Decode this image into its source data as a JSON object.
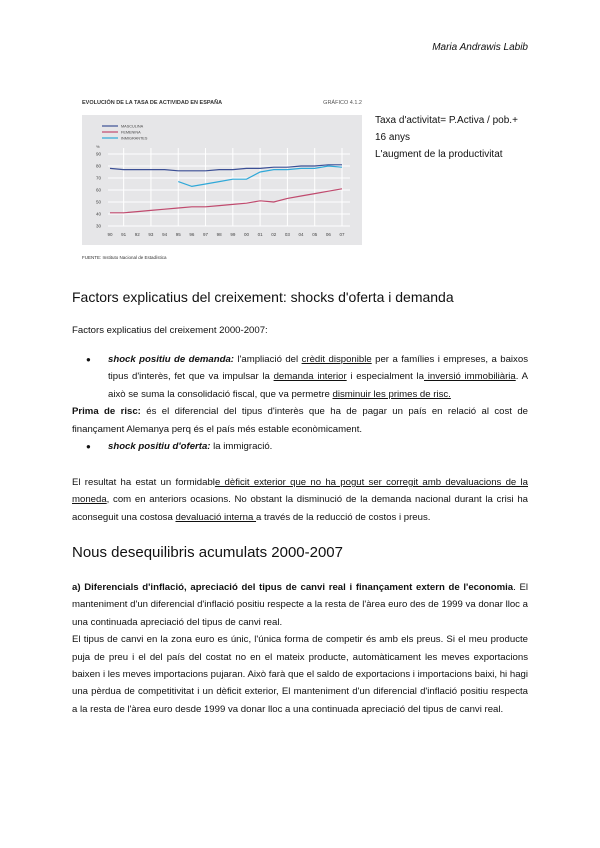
{
  "header": {
    "author": "Maria Andrawis Labib"
  },
  "figure": {
    "title": "EVOLUCIÓN DE LA TASA DE ACTIVIDAD EN ESPAÑA",
    "label": "GRÁFICO 4.1.2",
    "source": "FUENTE: Instituto Nacional de Estadística"
  },
  "chart_data": {
    "type": "line",
    "title": "EVOLUCIÓN DE LA TASA DE ACTIVIDAD EN ESPAÑA",
    "ylabel": "%",
    "ylim": [
      30,
      90
    ],
    "yticks": [
      "90",
      "80",
      "70",
      "60",
      "50",
      "40",
      "30"
    ],
    "categories": [
      "90",
      "91",
      "92",
      "93",
      "94",
      "95",
      "96",
      "97",
      "98",
      "99",
      "00",
      "01",
      "02",
      "03",
      "04",
      "05",
      "06",
      "07"
    ],
    "legend": "top-left",
    "grid": true,
    "series": [
      {
        "name": "MASCULINA",
        "color": "#3b4f95",
        "values": [
          78,
          77,
          77,
          77,
          77,
          76,
          76,
          76,
          77,
          77,
          78,
          78,
          79,
          79,
          80,
          80,
          81,
          81
        ]
      },
      {
        "name": "FEMENINA",
        "color": "#c04a6e",
        "values": [
          41,
          41,
          42,
          43,
          44,
          45,
          46,
          46,
          47,
          48,
          49,
          51,
          50,
          53,
          55,
          57,
          59,
          61
        ]
      },
      {
        "name": "INMIGRANTES",
        "color": "#2fa8d8",
        "values": [
          null,
          null,
          null,
          null,
          null,
          67,
          63,
          65,
          67,
          69,
          69,
          75,
          77,
          77,
          78,
          78,
          80,
          79
        ]
      }
    ]
  },
  "notes": {
    "line1": "Taxa d'activitat= P.Activa / pob.+",
    "line2": "16 anys",
    "line3": "L'augment de la productivitat"
  },
  "section1": {
    "heading": "Factors explicatius del creixement: shocks d'oferta i demanda",
    "subheading": "Factors explicatius del creixement 2000-2007:",
    "b1_term": "shock positiu de demanda:",
    "b1_a": " l'ampliació del ",
    "b1_u1": "crèdit disponible",
    "b1_b": " per a famílies i empreses, a baixos tipus d'interès, fet que va impulsar la ",
    "b1_u2": "demanda interior",
    "b1_c": " i especialment la",
    "b1_u3": " inversió immobiliària",
    "b1_d": ". A això se suma la consolidació fiscal, que va permetre ",
    "b1_u4": "disminuir les primes de risc.",
    "prima_term": "Prima de risc:",
    "prima_text": " és el diferencial del tipus d'interès que ha de pagar un país en relació al cost de finançament Alemanya perq és el país més estable econòmicament.",
    "b2_term": "shock positiu d'oferta:",
    "b2_text": " la immigració.",
    "p_a": "El resultat ha estat un formidabl",
    "p_u1": "e dèficit exterior que no ha pogut ser corregit amb devaluacions de la moneda",
    "p_b": ", com en anteriors ocasions. No obstant la disminució de la demanda nacional durant la crisi ha aconseguit una costosa ",
    "p_u2": "devaluació interna ",
    "p_c": "a través de la reducció de costos i preus."
  },
  "section2": {
    "heading": "Nous desequilibris acumulats 2000-2007",
    "a_bold": "a) Diferencials d'inflació, apreciació del tipus de canvi real i finançament extern de l'economia",
    "a_text": ". El manteniment d'un diferencial d'inflació positiu respecte a la resta de l'àrea euro des de 1999 va donar lloc a una continuada apreciació del tipus de canvi real.",
    "p2": "El tipus de canvi en la zona euro es únic, l'única forma de competir és amb els preus. Si el meu producte puja de preu i el del país del costat no en el mateix producte, automàticament les meves exportacions baixen i les meves importacions pujaran. Això farà que el saldo de exportacions i importacions baixi, hi hagi una pèrdua de competitivitat i un dèficit exterior, El manteniment d'un diferencial d'inflació positiu respecta a la resta de l'àrea euro desde 1999 va donar lloc a una continuada apreciació del tipus de canvi real."
  }
}
